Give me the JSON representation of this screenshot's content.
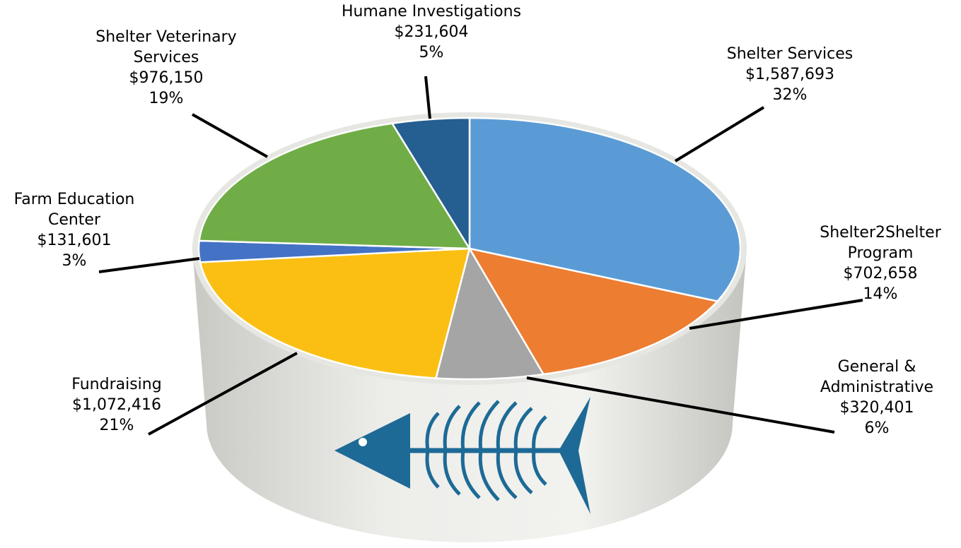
{
  "chart_data": {
    "type": "pie",
    "categories": [
      "Shelter Services",
      "Shelter2Shelter Program",
      "General & Administrative",
      "Fundraising",
      "Farm Education Center",
      "Shelter Veterinary Services",
      "Humane Investigations"
    ],
    "values": [
      1587693,
      702658,
      320401,
      1072416,
      131601,
      976150,
      231604
    ],
    "value_labels": [
      "$1,587,693",
      "$702,658",
      "$320,401",
      "$1,072,416",
      "$131,601",
      "$976,150",
      "$231,604"
    ],
    "percents": [
      32,
      14,
      6,
      21,
      3,
      19,
      5
    ],
    "percent_labels": [
      "32%",
      "14%",
      "6%",
      "21%",
      "3%",
      "19%",
      "5%"
    ],
    "colors": [
      "#5b9bd5",
      "#ed7d31",
      "#a5a5a5",
      "#fbbf14",
      "#4472c4",
      "#70ad47",
      "#255e91"
    ]
  }
}
